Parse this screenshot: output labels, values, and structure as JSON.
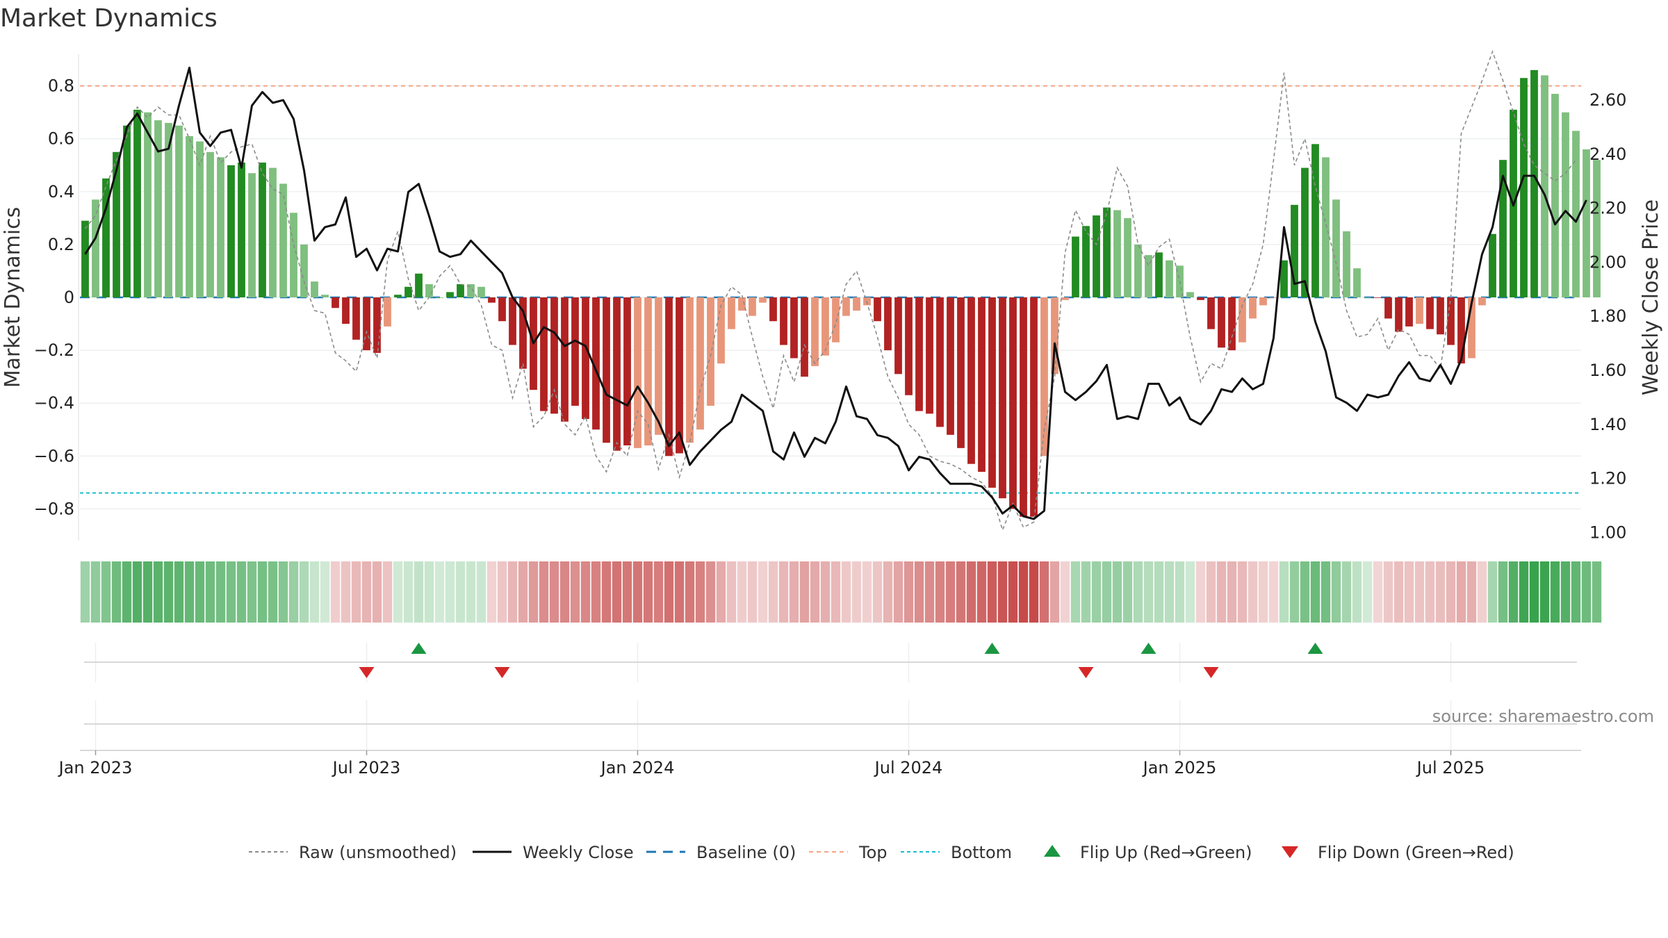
{
  "chart_data": {
    "type": "bar",
    "title": "Market Dynamics",
    "ylabel_left": "Market Dynamics",
    "ylabel_right": "Weekly Close Price",
    "source": "source: sharemaestro.com",
    "ylim_left": [
      -0.92,
      0.92
    ],
    "ylim_right": [
      0.97,
      2.77
    ],
    "left_ticks": [
      {
        "v": 0.8,
        "label": "0.8"
      },
      {
        "v": 0.6,
        "label": "0.6"
      },
      {
        "v": 0.4,
        "label": "0.4"
      },
      {
        "v": 0.2,
        "label": "0.2"
      },
      {
        "v": 0.0,
        "label": "0"
      },
      {
        "v": -0.2,
        "label": "−0.2"
      },
      {
        "v": -0.4,
        "label": "−0.4"
      },
      {
        "v": -0.6,
        "label": "−0.6"
      },
      {
        "v": -0.8,
        "label": "−0.8"
      }
    ],
    "right_ticks": [
      {
        "v": 2.6,
        "label": "2.60"
      },
      {
        "v": 2.4,
        "label": "2.40"
      },
      {
        "v": 2.2,
        "label": "2.20"
      },
      {
        "v": 2.0,
        "label": "2.00"
      },
      {
        "v": 1.8,
        "label": "1.80"
      },
      {
        "v": 1.6,
        "label": "1.60"
      },
      {
        "v": 1.4,
        "label": "1.40"
      },
      {
        "v": 1.2,
        "label": "1.20"
      },
      {
        "v": 1.0,
        "label": "1.00"
      }
    ],
    "x_ticks": [
      {
        "week": 1.5,
        "label": "Jan 2023"
      },
      {
        "week": 27.5,
        "label": "Jul 2023"
      },
      {
        "week": 53.5,
        "label": "Jan 2024"
      },
      {
        "week": 79.5,
        "label": "Jul 2024"
      },
      {
        "week": 105.5,
        "label": "Jan 2025"
      },
      {
        "week": 131.5,
        "label": "Jul 2025"
      }
    ],
    "week_range": [
      0,
      144
    ],
    "top_line": 0.8,
    "bottom_line": -0.74,
    "colors": {
      "strong_up": "#228b22",
      "up": "#7fbf7f",
      "strong_down": "#b22222",
      "down": "#e8967a",
      "raw": "#8a8a8a",
      "close": "#111111",
      "baseline": "#1f77b4",
      "top": "#f4a582",
      "bottom": "#17becf",
      "flip_up": "#1a9641",
      "flip_down": "#d62728"
    },
    "bars": [
      {
        "v": 0.29,
        "c": "G"
      },
      {
        "v": 0.37,
        "c": "g"
      },
      {
        "v": 0.45,
        "c": "G"
      },
      {
        "v": 0.55,
        "c": "G"
      },
      {
        "v": 0.65,
        "c": "G"
      },
      {
        "v": 0.71,
        "c": "G"
      },
      {
        "v": 0.7,
        "c": "g"
      },
      {
        "v": 0.67,
        "c": "g"
      },
      {
        "v": 0.66,
        "c": "g"
      },
      {
        "v": 0.65,
        "c": "g"
      },
      {
        "v": 0.61,
        "c": "g"
      },
      {
        "v": 0.59,
        "c": "g"
      },
      {
        "v": 0.55,
        "c": "g"
      },
      {
        "v": 0.53,
        "c": "g"
      },
      {
        "v": 0.5,
        "c": "G"
      },
      {
        "v": 0.51,
        "c": "G"
      },
      {
        "v": 0.47,
        "c": "g"
      },
      {
        "v": 0.51,
        "c": "G"
      },
      {
        "v": 0.49,
        "c": "g"
      },
      {
        "v": 0.43,
        "c": "g"
      },
      {
        "v": 0.32,
        "c": "g"
      },
      {
        "v": 0.2,
        "c": "g"
      },
      {
        "v": 0.06,
        "c": "g"
      },
      {
        "v": 0.01,
        "c": "g"
      },
      {
        "v": -0.04,
        "c": "R"
      },
      {
        "v": -0.1,
        "c": "R"
      },
      {
        "v": -0.16,
        "c": "R"
      },
      {
        "v": -0.2,
        "c": "R"
      },
      {
        "v": -0.21,
        "c": "R"
      },
      {
        "v": -0.11,
        "c": "r"
      },
      {
        "v": 0.01,
        "c": "G"
      },
      {
        "v": 0.04,
        "c": "G"
      },
      {
        "v": 0.09,
        "c": "G"
      },
      {
        "v": 0.05,
        "c": "g"
      },
      {
        "v": 0.0,
        "c": "g"
      },
      {
        "v": 0.02,
        "c": "G"
      },
      {
        "v": 0.05,
        "c": "G"
      },
      {
        "v": 0.05,
        "c": "g"
      },
      {
        "v": 0.04,
        "c": "g"
      },
      {
        "v": -0.02,
        "c": "R"
      },
      {
        "v": -0.09,
        "c": "R"
      },
      {
        "v": -0.18,
        "c": "R"
      },
      {
        "v": -0.27,
        "c": "R"
      },
      {
        "v": -0.35,
        "c": "R"
      },
      {
        "v": -0.43,
        "c": "R"
      },
      {
        "v": -0.44,
        "c": "R"
      },
      {
        "v": -0.47,
        "c": "R"
      },
      {
        "v": -0.41,
        "c": "R"
      },
      {
        "v": -0.46,
        "c": "R"
      },
      {
        "v": -0.5,
        "c": "R"
      },
      {
        "v": -0.55,
        "c": "R"
      },
      {
        "v": -0.58,
        "c": "R"
      },
      {
        "v": -0.56,
        "c": "R"
      },
      {
        "v": -0.57,
        "c": "r"
      },
      {
        "v": -0.56,
        "c": "r"
      },
      {
        "v": -0.52,
        "c": "r"
      },
      {
        "v": -0.6,
        "c": "R"
      },
      {
        "v": -0.59,
        "c": "R"
      },
      {
        "v": -0.55,
        "c": "r"
      },
      {
        "v": -0.5,
        "c": "r"
      },
      {
        "v": -0.41,
        "c": "r"
      },
      {
        "v": -0.25,
        "c": "r"
      },
      {
        "v": -0.12,
        "c": "r"
      },
      {
        "v": -0.05,
        "c": "r"
      },
      {
        "v": -0.07,
        "c": "r"
      },
      {
        "v": -0.02,
        "c": "r"
      },
      {
        "v": -0.09,
        "c": "R"
      },
      {
        "v": -0.18,
        "c": "R"
      },
      {
        "v": -0.23,
        "c": "R"
      },
      {
        "v": -0.3,
        "c": "R"
      },
      {
        "v": -0.26,
        "c": "r"
      },
      {
        "v": -0.22,
        "c": "r"
      },
      {
        "v": -0.17,
        "c": "r"
      },
      {
        "v": -0.07,
        "c": "r"
      },
      {
        "v": -0.05,
        "c": "r"
      },
      {
        "v": -0.03,
        "c": "r"
      },
      {
        "v": -0.09,
        "c": "R"
      },
      {
        "v": -0.2,
        "c": "R"
      },
      {
        "v": -0.29,
        "c": "R"
      },
      {
        "v": -0.37,
        "c": "R"
      },
      {
        "v": -0.43,
        "c": "R"
      },
      {
        "v": -0.44,
        "c": "R"
      },
      {
        "v": -0.49,
        "c": "R"
      },
      {
        "v": -0.52,
        "c": "R"
      },
      {
        "v": -0.57,
        "c": "R"
      },
      {
        "v": -0.63,
        "c": "R"
      },
      {
        "v": -0.66,
        "c": "R"
      },
      {
        "v": -0.72,
        "c": "R"
      },
      {
        "v": -0.76,
        "c": "R"
      },
      {
        "v": -0.8,
        "c": "R"
      },
      {
        "v": -0.83,
        "c": "R"
      },
      {
        "v": -0.83,
        "c": "R"
      },
      {
        "v": -0.6,
        "c": "r"
      },
      {
        "v": -0.29,
        "c": "r"
      },
      {
        "v": -0.01,
        "c": "r"
      },
      {
        "v": 0.23,
        "c": "G"
      },
      {
        "v": 0.27,
        "c": "G"
      },
      {
        "v": 0.31,
        "c": "G"
      },
      {
        "v": 0.34,
        "c": "G"
      },
      {
        "v": 0.33,
        "c": "g"
      },
      {
        "v": 0.3,
        "c": "g"
      },
      {
        "v": 0.2,
        "c": "g"
      },
      {
        "v": 0.16,
        "c": "g"
      },
      {
        "v": 0.17,
        "c": "G"
      },
      {
        "v": 0.14,
        "c": "g"
      },
      {
        "v": 0.12,
        "c": "g"
      },
      {
        "v": 0.02,
        "c": "g"
      },
      {
        "v": -0.01,
        "c": "R"
      },
      {
        "v": -0.12,
        "c": "R"
      },
      {
        "v": -0.19,
        "c": "R"
      },
      {
        "v": -0.2,
        "c": "R"
      },
      {
        "v": -0.17,
        "c": "r"
      },
      {
        "v": -0.08,
        "c": "r"
      },
      {
        "v": -0.03,
        "c": "r"
      },
      {
        "v": 0.0,
        "c": "r"
      },
      {
        "v": 0.14,
        "c": "G"
      },
      {
        "v": 0.35,
        "c": "G"
      },
      {
        "v": 0.49,
        "c": "G"
      },
      {
        "v": 0.58,
        "c": "G"
      },
      {
        "v": 0.53,
        "c": "g"
      },
      {
        "v": 0.37,
        "c": "g"
      },
      {
        "v": 0.25,
        "c": "g"
      },
      {
        "v": 0.11,
        "c": "g"
      },
      {
        "v": 0.0,
        "c": "g"
      },
      {
        "v": 0.0,
        "c": "R"
      },
      {
        "v": -0.08,
        "c": "R"
      },
      {
        "v": -0.13,
        "c": "R"
      },
      {
        "v": -0.11,
        "c": "R"
      },
      {
        "v": -0.1,
        "c": "r"
      },
      {
        "v": -0.12,
        "c": "R"
      },
      {
        "v": -0.14,
        "c": "R"
      },
      {
        "v": -0.18,
        "c": "R"
      },
      {
        "v": -0.25,
        "c": "R"
      },
      {
        "v": -0.23,
        "c": "r"
      },
      {
        "v": -0.03,
        "c": "r"
      },
      {
        "v": 0.24,
        "c": "G"
      },
      {
        "v": 0.52,
        "c": "G"
      },
      {
        "v": 0.71,
        "c": "G"
      },
      {
        "v": 0.83,
        "c": "G"
      },
      {
        "v": 0.86,
        "c": "G"
      },
      {
        "v": 0.84,
        "c": "g"
      },
      {
        "v": 0.77,
        "c": "g"
      },
      {
        "v": 0.7,
        "c": "g"
      },
      {
        "v": 0.63,
        "c": "g"
      },
      {
        "v": 0.56,
        "c": "g"
      },
      {
        "v": 0.52,
        "c": "g"
      }
    ],
    "raw": [
      0.26,
      0.31,
      0.42,
      0.52,
      0.61,
      0.72,
      0.68,
      0.72,
      0.69,
      0.69,
      0.6,
      0.5,
      0.61,
      0.51,
      0.55,
      0.57,
      0.58,
      0.47,
      0.41,
      0.39,
      0.2,
      0.06,
      -0.05,
      -0.06,
      -0.21,
      -0.24,
      -0.28,
      -0.13,
      -0.23,
      0.14,
      0.25,
      0.07,
      -0.05,
      0.0,
      0.08,
      0.12,
      0.05,
      0.04,
      -0.03,
      -0.18,
      -0.2,
      -0.38,
      -0.25,
      -0.49,
      -0.45,
      -0.35,
      -0.48,
      -0.52,
      -0.45,
      -0.6,
      -0.66,
      -0.55,
      -0.6,
      -0.43,
      -0.48,
      -0.65,
      -0.52,
      -0.68,
      -0.55,
      -0.35,
      -0.22,
      -0.03,
      0.04,
      0.01,
      -0.15,
      -0.3,
      -0.42,
      -0.22,
      -0.32,
      -0.18,
      -0.25,
      -0.2,
      -0.1,
      0.05,
      0.1,
      -0.02,
      -0.15,
      -0.3,
      -0.38,
      -0.48,
      -0.52,
      -0.6,
      -0.62,
      -0.63,
      -0.65,
      -0.68,
      -0.7,
      -0.75,
      -0.88,
      -0.78,
      -0.87,
      -0.85,
      -0.5,
      -0.3,
      0.17,
      0.33,
      0.25,
      0.2,
      0.32,
      0.49,
      0.42,
      0.2,
      0.12,
      0.19,
      0.22,
      0.06,
      -0.15,
      -0.32,
      -0.25,
      -0.27,
      -0.15,
      -0.03,
      0.05,
      0.2,
      0.52,
      0.85,
      0.5,
      0.6,
      0.42,
      0.28,
      0.13,
      -0.05,
      -0.15,
      -0.14,
      -0.08,
      -0.2,
      -0.12,
      -0.14,
      -0.22,
      -0.22,
      -0.27,
      0.0,
      0.62,
      0.72,
      0.82,
      0.93,
      0.82,
      0.7,
      0.58,
      0.5,
      0.47,
      0.44,
      0.47,
      0.52
    ],
    "close": [
      2.03,
      2.09,
      2.2,
      2.34,
      2.5,
      2.55,
      2.48,
      2.41,
      2.42,
      2.58,
      2.72,
      2.48,
      2.43,
      2.48,
      2.49,
      2.35,
      2.58,
      2.63,
      2.59,
      2.6,
      2.53,
      2.34,
      2.08,
      2.13,
      2.14,
      2.24,
      2.02,
      2.05,
      1.97,
      2.05,
      2.04,
      2.26,
      2.29,
      2.17,
      2.04,
      2.02,
      2.03,
      2.08,
      2.04,
      2.0,
      1.96,
      1.87,
      1.82,
      1.7,
      1.76,
      1.74,
      1.69,
      1.71,
      1.69,
      1.6,
      1.51,
      1.49,
      1.47,
      1.54,
      1.48,
      1.41,
      1.32,
      1.37,
      1.25,
      1.3,
      1.34,
      1.38,
      1.41,
      1.51,
      1.48,
      1.45,
      1.3,
      1.27,
      1.37,
      1.28,
      1.35,
      1.33,
      1.41,
      1.54,
      1.43,
      1.42,
      1.36,
      1.35,
      1.32,
      1.23,
      1.28,
      1.27,
      1.22,
      1.18,
      1.18,
      1.18,
      1.17,
      1.13,
      1.07,
      1.1,
      1.06,
      1.05,
      1.08,
      1.7,
      1.52,
      1.49,
      1.52,
      1.56,
      1.62,
      1.42,
      1.43,
      1.42,
      1.55,
      1.55,
      1.47,
      1.5,
      1.42,
      1.4,
      1.45,
      1.53,
      1.52,
      1.57,
      1.53,
      1.55,
      1.72,
      2.13,
      1.92,
      1.93,
      1.78,
      1.67,
      1.5,
      1.48,
      1.45,
      1.51,
      1.5,
      1.51,
      1.58,
      1.63,
      1.57,
      1.56,
      1.62,
      1.55,
      1.64,
      1.85,
      2.03,
      2.13,
      2.32,
      2.21,
      2.32,
      2.32,
      2.25,
      2.14,
      2.19,
      2.15,
      2.23
    ],
    "flips_up": [
      32.5,
      87.5,
      102.5,
      118.5
    ],
    "flips_down": [
      27.5,
      40.5,
      96.5,
      108.5
    ],
    "legend": [
      {
        "key": "raw",
        "label": "Raw (unsmoothed)"
      },
      {
        "key": "close",
        "label": "Weekly Close"
      },
      {
        "key": "baseline",
        "label": "Baseline (0)"
      },
      {
        "key": "top",
        "label": "Top"
      },
      {
        "key": "bottom",
        "label": "Bottom"
      },
      {
        "key": "flip_up",
        "label": "Flip Up (Red→Green)"
      },
      {
        "key": "flip_down",
        "label": "Flip Down (Green→Red)"
      }
    ]
  }
}
